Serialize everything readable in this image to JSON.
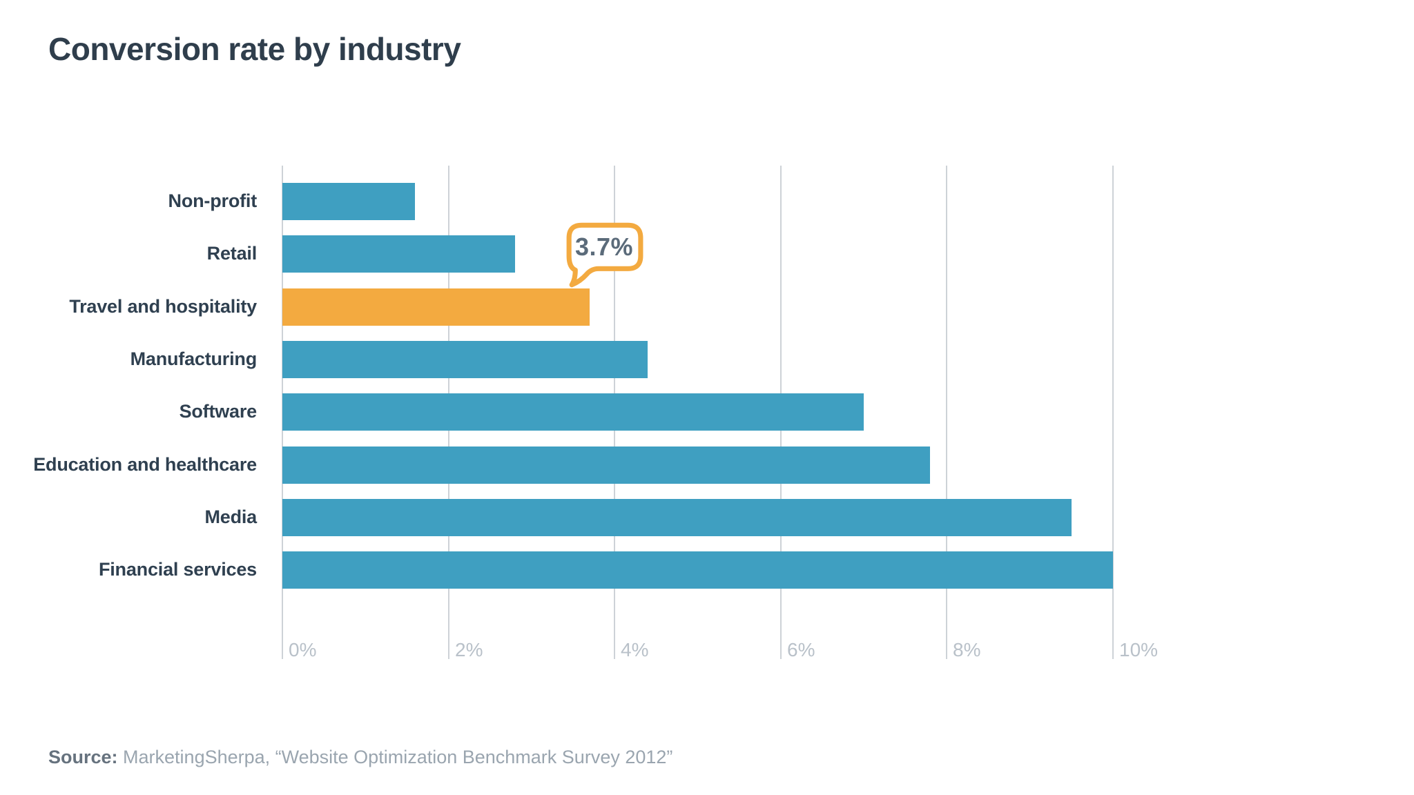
{
  "title": "Conversion rate by industry",
  "callout": {
    "value": "3.7%",
    "border_color": "#f3aa40",
    "text_color": "#5b6b7a"
  },
  "source": {
    "label": "Source:",
    "text": " MarketingSherpa, “Website Optimization Benchmark Survey 2012”"
  },
  "chart_data": {
    "type": "bar",
    "orientation": "horizontal",
    "title": "Conversion rate by industry",
    "categories": [
      "Non-profit",
      "Retail",
      "Travel and hospitality",
      "Manufacturing",
      "Software",
      "Education and healthcare",
      "Media",
      "Financial services"
    ],
    "values": [
      1.6,
      2.8,
      3.7,
      4.4,
      7.0,
      7.8,
      9.5,
      10.0
    ],
    "unit": "%",
    "highlight_index": 2,
    "annotation": {
      "text": "3.7%",
      "target_category": "Travel and hospitality"
    },
    "xlim": [
      0,
      10
    ],
    "tick_values": [
      0,
      2,
      4,
      6,
      8,
      10
    ],
    "tick_labels": [
      "0%",
      "2%",
      "4%",
      "6%",
      "8%",
      "10%"
    ],
    "grid": "vertical",
    "legend": "none",
    "colors": {
      "bar": "#3f9fc1",
      "highlight": "#f3aa40",
      "gridline": "#cdd2d7",
      "tick_text": "#b9c1c9",
      "label_text": "#2f4050"
    }
  }
}
